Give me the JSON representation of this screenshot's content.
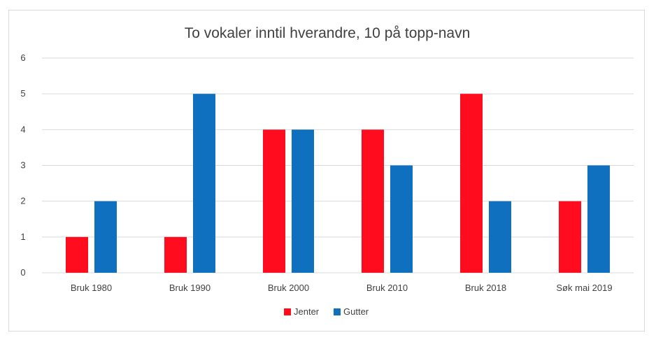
{
  "colors": {
    "jenter": "#ff0d1e",
    "gutter": "#1070c0",
    "grid": "#d9d9d9",
    "text": "#404040"
  },
  "chart_data": {
    "type": "bar",
    "title": "To vokaler inntil hverandre, 10 på topp-navn",
    "categories": [
      "Bruk 1980",
      "Bruk 1990",
      "Bruk 2000",
      "Bruk 2010",
      "Bruk 2018",
      "Søk mai 2019"
    ],
    "series": [
      {
        "name": "Jenter",
        "values": [
          1,
          1,
          4,
          4,
          5,
          2
        ]
      },
      {
        "name": "Gutter",
        "values": [
          2,
          5,
          4,
          3,
          2,
          3
        ]
      }
    ],
    "y_ticks": [
      "0",
      "1",
      "2",
      "3",
      "4",
      "5",
      "6"
    ],
    "ylim": [
      0,
      6
    ],
    "grid": true,
    "legend_position": "bottom"
  }
}
